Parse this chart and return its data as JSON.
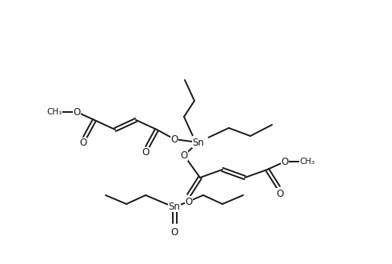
{
  "bg_color": "#ffffff",
  "line_color": "#1a1a1a",
  "lw": 1.4,
  "figsize": [
    4.9,
    3.3
  ],
  "dpi": 100,
  "sn1": [
    248,
    178
  ],
  "sn2": [
    218,
    75
  ]
}
